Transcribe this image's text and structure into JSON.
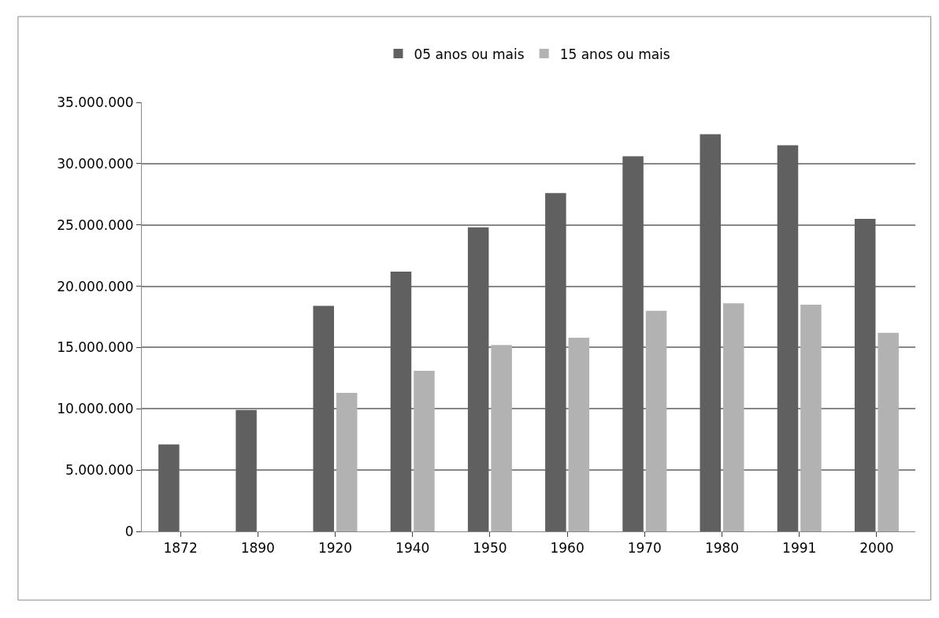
{
  "chart_data": {
    "type": "bar",
    "categories": [
      "1872",
      "1890",
      "1920",
      "1940",
      "1950",
      "1960",
      "1970",
      "1980",
      "1991",
      "2000"
    ],
    "series": [
      {
        "name": "05 anos ou mais",
        "color": "#606060",
        "values": [
          7100000,
          9900000,
          18400000,
          21200000,
          24800000,
          27600000,
          30600000,
          32400000,
          31500000,
          25500000
        ]
      },
      {
        "name": "15 anos ou mais",
        "color": "#b2b2b2",
        "values": [
          null,
          null,
          11300000,
          13100000,
          15200000,
          15800000,
          18000000,
          18600000,
          18500000,
          16200000
        ]
      }
    ],
    "ylim": [
      0,
      35000000
    ],
    "yticks": [
      0,
      {
        "value": 5000000,
        "label": "5.000.000"
      },
      {
        "value": 10000000,
        "label": "10.000.000"
      },
      {
        "value": 15000000,
        "label": "15.000.000"
      },
      {
        "value": 20000000,
        "label": "20.000.000"
      },
      {
        "value": 25000000,
        "label": "25.000.000"
      },
      {
        "value": 30000000,
        "label": "30.000.000"
      },
      {
        "value": 35000000,
        "label": "35.000.000"
      }
    ],
    "grid": "y",
    "legend": "top"
  }
}
